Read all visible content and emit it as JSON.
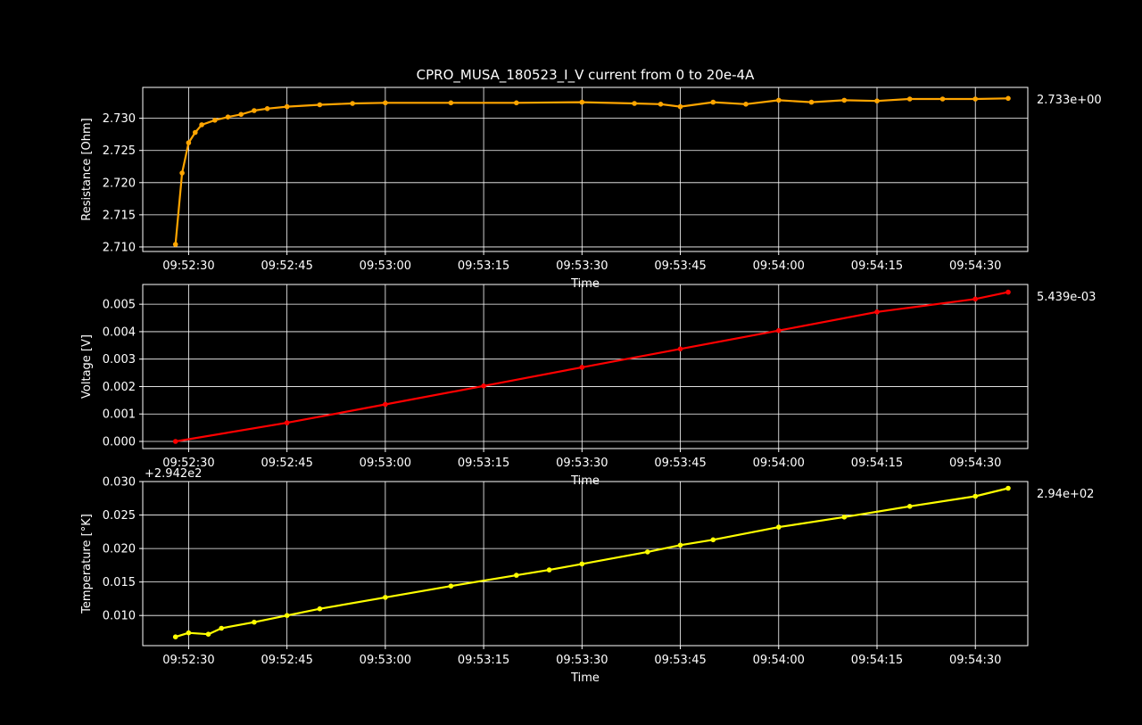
{
  "title": "CPRO_MUSA_180523_I_V current from 0 to 20e-4A",
  "colors": {
    "background": "#000000",
    "foreground": "#ffffff",
    "resistance": "#ffa500",
    "voltage": "#ff0000",
    "temperature": "#ffff00",
    "grid": "#ffffff"
  },
  "chart_data": [
    {
      "type": "line",
      "ylabel": "Resistance [Ohm]",
      "xlabel": "Time",
      "xlim": [
        "09:52:23",
        "09:54:38"
      ],
      "xticks": [
        "09:52:30",
        "09:52:45",
        "09:53:00",
        "09:53:15",
        "09:53:30",
        "09:53:45",
        "09:54:00",
        "09:54:15",
        "09:54:30"
      ],
      "ylim": [
        2.7093,
        2.7348
      ],
      "yticks": [
        "2.710",
        "2.715",
        "2.720",
        "2.725",
        "2.730"
      ],
      "grid": true,
      "last_value_label": "2.733e+00",
      "series": [
        {
          "color": "#ffa500",
          "x": [
            "09:52:28",
            "09:52:29",
            "09:52:30",
            "09:52:31",
            "09:52:32",
            "09:52:34",
            "09:52:36",
            "09:52:38",
            "09:52:40",
            "09:52:42",
            "09:52:45",
            "09:52:50",
            "09:52:55",
            "09:53:00",
            "09:53:10",
            "09:53:20",
            "09:53:30",
            "09:53:38",
            "09:53:42",
            "09:53:45",
            "09:53:50",
            "09:53:55",
            "09:54:00",
            "09:54:05",
            "09:54:10",
            "09:54:15",
            "09:54:20",
            "09:54:25",
            "09:54:30",
            "09:54:35"
          ],
          "y": [
            2.7104,
            2.7215,
            2.7262,
            2.7278,
            2.729,
            2.7297,
            2.7302,
            2.7306,
            2.7312,
            2.7315,
            2.7318,
            2.7321,
            2.7323,
            2.7324,
            2.7324,
            2.7324,
            2.7325,
            2.7323,
            2.7322,
            2.7318,
            2.7325,
            2.7322,
            2.7328,
            2.7325,
            2.7328,
            2.7327,
            2.733,
            2.733,
            2.733,
            2.7331
          ]
        }
      ]
    },
    {
      "type": "line",
      "ylabel": "Voltage [V]",
      "xlabel": "Time",
      "xlim": [
        "09:52:23",
        "09:54:38"
      ],
      "xticks": [
        "09:52:30",
        "09:52:45",
        "09:53:00",
        "09:53:15",
        "09:53:30",
        "09:53:45",
        "09:54:00",
        "09:54:15",
        "09:54:30"
      ],
      "ylim": [
        -0.00026,
        0.00572
      ],
      "yticks": [
        "0.000",
        "0.001",
        "0.002",
        "0.003",
        "0.004",
        "0.005"
      ],
      "grid": true,
      "last_value_label": "5.439e-03",
      "series": [
        {
          "color": "#ff0000",
          "x": [
            "09:52:28",
            "09:52:45",
            "09:53:00",
            "09:53:15",
            "09:53:30",
            "09:53:45",
            "09:54:00",
            "09:54:15",
            "09:54:30",
            "09:54:35"
          ],
          "y": [
            0.0,
            0.00068,
            0.00135,
            0.00202,
            0.0027,
            0.00337,
            0.00404,
            0.00472,
            0.00519,
            0.00544
          ]
        }
      ]
    },
    {
      "type": "line",
      "ylabel": "Temperature [°K]",
      "xlabel": "Time",
      "offset_label": "+2.942e2",
      "xlim": [
        "09:52:23",
        "09:54:38"
      ],
      "xticks": [
        "09:52:30",
        "09:52:45",
        "09:53:00",
        "09:53:15",
        "09:53:30",
        "09:53:45",
        "09:54:00",
        "09:54:15",
        "09:54:30"
      ],
      "ylim": [
        0.0055,
        0.03
      ],
      "yticks": [
        "0.010",
        "0.015",
        "0.020",
        "0.025",
        "0.030"
      ],
      "grid": true,
      "last_value_label": "2.94e+02",
      "series": [
        {
          "color": "#ffff00",
          "x": [
            "09:52:28",
            "09:52:30",
            "09:52:33",
            "09:52:35",
            "09:52:40",
            "09:52:45",
            "09:52:50",
            "09:53:00",
            "09:53:10",
            "09:53:20",
            "09:53:25",
            "09:53:30",
            "09:53:40",
            "09:53:45",
            "09:53:50",
            "09:54:00",
            "09:54:10",
            "09:54:20",
            "09:54:30",
            "09:54:35"
          ],
          "y": [
            0.0068,
            0.0074,
            0.0072,
            0.0081,
            0.009,
            0.01,
            0.011,
            0.0127,
            0.0144,
            0.016,
            0.0168,
            0.0177,
            0.0195,
            0.0205,
            0.0213,
            0.0232,
            0.0247,
            0.0263,
            0.0278,
            0.029
          ]
        }
      ]
    }
  ]
}
